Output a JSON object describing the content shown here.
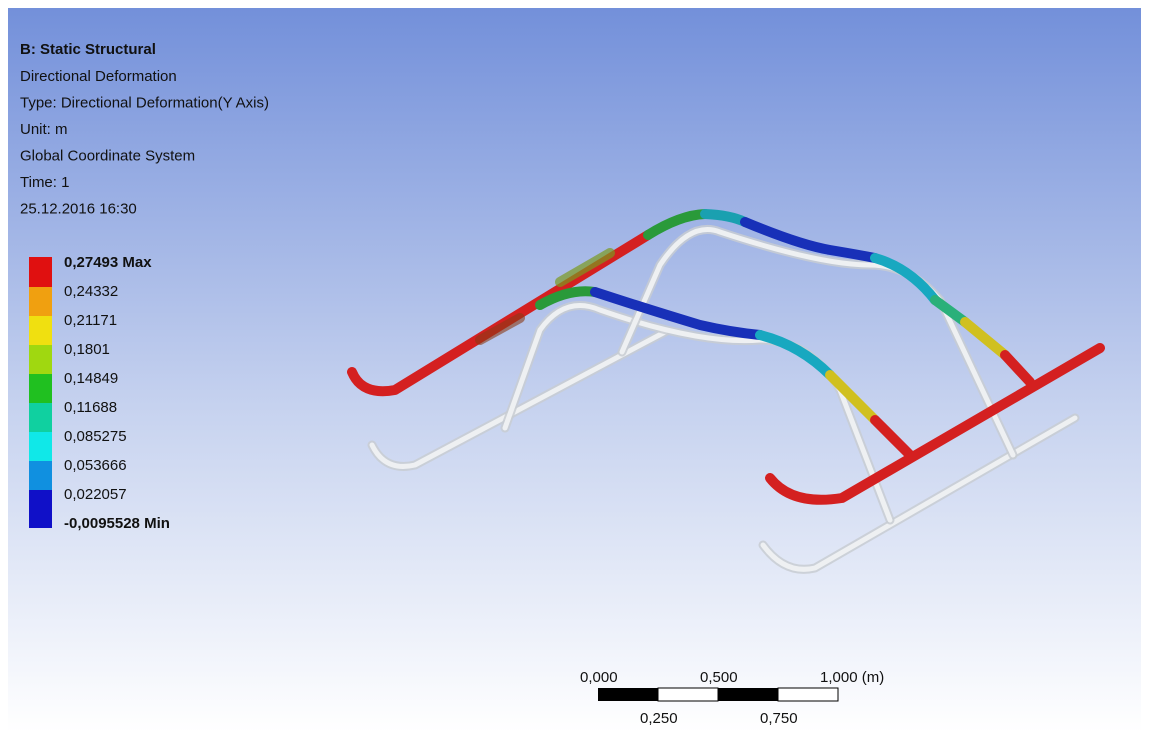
{
  "header": {
    "title": "B: Static Structural",
    "lines": [
      "Directional Deformation",
      "Type: Directional Deformation(Y Axis)",
      "Unit: m",
      "Global Coordinate System",
      "Time: 1",
      "25.12.2016 16:30"
    ]
  },
  "legend": {
    "labels": [
      "0,27493 Max",
      "0,24332",
      "0,21171",
      "0,1801",
      "0,14849",
      "0,11688",
      "0,085275",
      "0,053666",
      "0,022057",
      "-0,0095528 Min"
    ]
  },
  "scale_bar": {
    "top_labels": [
      "0,000",
      "0,500",
      "1,000 (m)"
    ],
    "bottom_labels": [
      "0,250",
      "0,750"
    ]
  }
}
